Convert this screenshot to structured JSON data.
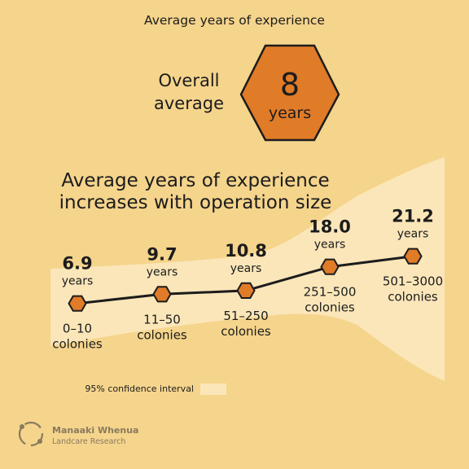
{
  "header": {
    "title": "Average years of experience"
  },
  "overall": {
    "label_line1": "Overall",
    "label_line2": "average",
    "value": "8",
    "unit": "years"
  },
  "chart_data": {
    "type": "line",
    "title": "Average years of experience increases with operation size",
    "title_lines": [
      "Average years of experience",
      "increases with operation size"
    ],
    "categories": [
      [
        "0–10",
        "colonies"
      ],
      [
        "11–50",
        "colonies"
      ],
      [
        "51–250",
        "colonies"
      ],
      [
        "251–500",
        "colonies"
      ],
      [
        "501–3000",
        "colonies"
      ]
    ],
    "values": [
      6.9,
      9.7,
      10.8,
      18.0,
      21.2
    ],
    "value_labels": [
      "6.9",
      "9.7",
      "10.8",
      "18.0",
      "21.2"
    ],
    "unit_label": "years",
    "legend": {
      "label": "95% confidence interval",
      "position": "bottom-left"
    },
    "colors": {
      "marker": "#e07b28",
      "line": "#1c1c1c",
      "band": "#fbe6b9",
      "background": "#f5d48c"
    }
  },
  "logo": {
    "line1": "Manaaki Whenua",
    "line2": "Landcare Research"
  }
}
